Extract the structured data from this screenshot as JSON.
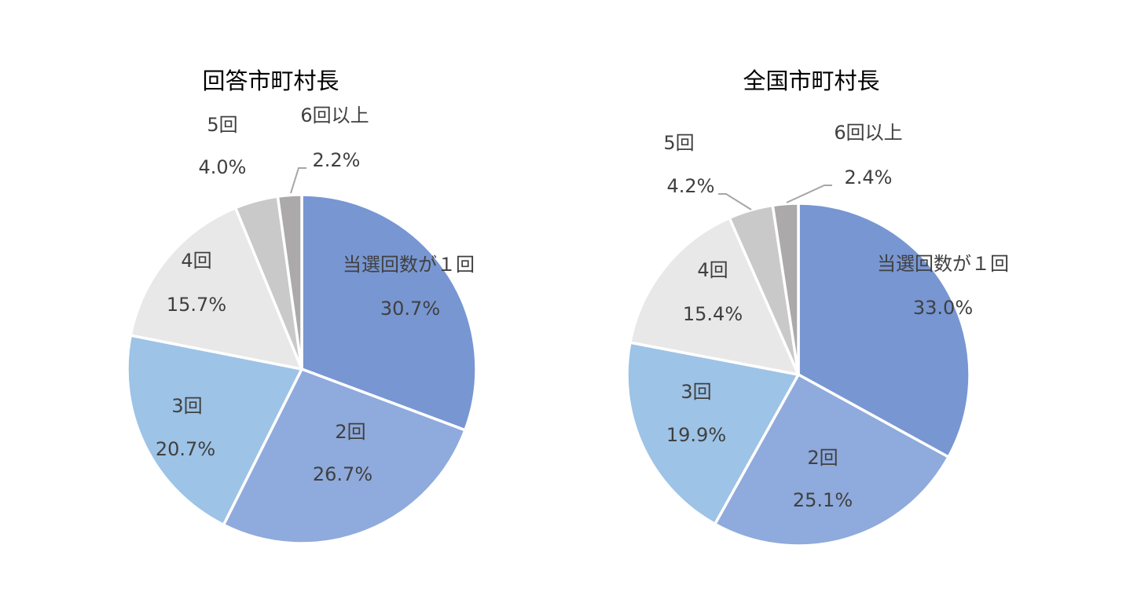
{
  "chart_data": [
    {
      "type": "pie",
      "title": "回答市町村長",
      "categories": [
        "当選回数が１回",
        "2回",
        "3回",
        "4回",
        "5回",
        "6回以上"
      ],
      "values": [
        30.7,
        26.7,
        20.7,
        15.7,
        4.0,
        2.2
      ],
      "value_labels": [
        "30.7%",
        "26.7%",
        "20.7%",
        "15.7%",
        "4.0%",
        "2.2%"
      ],
      "colors": [
        "#7896D2",
        "#8FAADC",
        "#9DC3E6",
        "#E8E8E8",
        "#C9C9C9",
        "#ABA9A9"
      ]
    },
    {
      "type": "pie",
      "title": "全国市町村長",
      "categories": [
        "当選回数が１回",
        "2回",
        "3回",
        "4回",
        "5回",
        "6回以上"
      ],
      "values": [
        33.0,
        25.1,
        19.9,
        15.4,
        4.2,
        2.4
      ],
      "value_labels": [
        "33.0%",
        "25.1%",
        "19.9%",
        "15.4%",
        "4.2%",
        "2.4%"
      ],
      "colors": [
        "#7896D2",
        "#8FAADC",
        "#9DC3E6",
        "#E8E8E8",
        "#C9C9C9",
        "#ABA9A9"
      ]
    }
  ]
}
